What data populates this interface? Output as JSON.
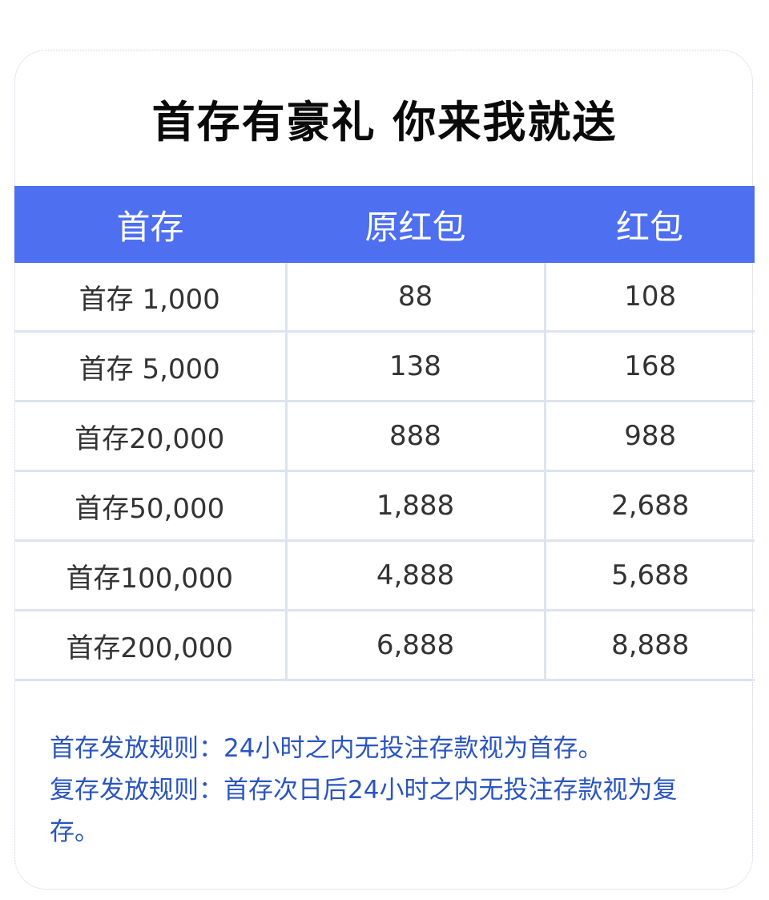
{
  "title": "首存有豪礼 你来我就送",
  "table": {
    "headers": [
      "首存",
      "原红包",
      "红包"
    ],
    "rows": [
      [
        "首存 1,000",
        "88",
        "108"
      ],
      [
        "首存 5,000",
        "138",
        "168"
      ],
      [
        "首存20,000",
        "888",
        "988"
      ],
      [
        "首存50,000",
        "1,888",
        "2,688"
      ],
      [
        "首存100,000",
        "4,888",
        "5,688"
      ],
      [
        "首存200,000",
        "6,888",
        "8,888"
      ]
    ]
  },
  "rules": [
    "首存发放规则：24小时之内无投注存款视为首存。",
    "复存发放规则：首存次日后24小时之内无投注存款视为复存。"
  ],
  "colors": {
    "header": "#4d6ff0",
    "rules_text": "#2a55c0",
    "title": "#0a0a0a"
  }
}
